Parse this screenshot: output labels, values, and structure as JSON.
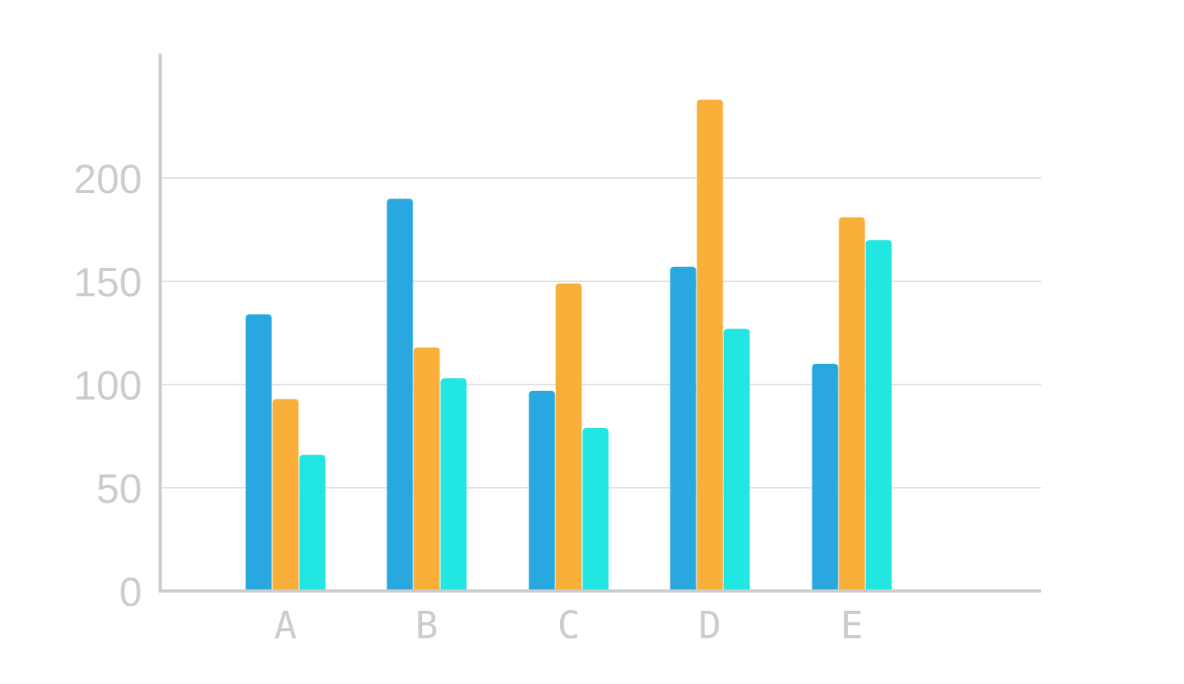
{
  "chart_data": {
    "type": "bar",
    "categories": [
      "A",
      "B",
      "C",
      "D",
      "E"
    ],
    "series": [
      {
        "values": [
          134,
          190,
          97,
          157,
          110
        ],
        "color": "#29a8e0"
      },
      {
        "values": [
          93,
          118,
          149,
          238,
          181
        ],
        "color": "#faaf3b"
      },
      {
        "values": [
          66,
          103,
          79,
          127,
          170
        ],
        "color": "#21e6e1"
      }
    ],
    "yticks": [
      "0",
      "50",
      "100",
      "150",
      "200"
    ],
    "ylim": [
      0,
      260
    ],
    "grid": true,
    "grid_color": "#d9d9d9",
    "axis_color": "#cccccc"
  }
}
